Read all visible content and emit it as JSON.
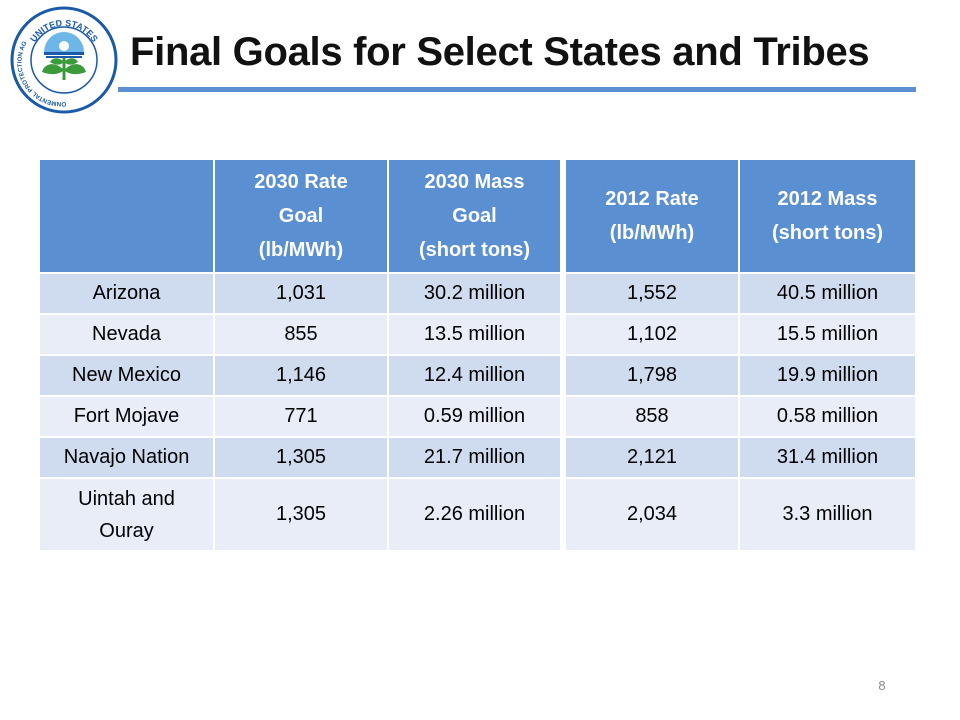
{
  "header": {
    "title": "Final Goals for Select States and Tribes",
    "logo_text_top": "UNITED STATES",
    "logo_text_left": "ENVIRONMENTAL PROTECTION AGENCY"
  },
  "colors": {
    "header_fill": "#5a8fd2",
    "row_band_dark": "#cfdbef",
    "row_band_light": "#e8edf7",
    "title_rule": "#5b8fd2"
  },
  "table_left": {
    "headers": [
      [
        ""
      ],
      [
        "2030 Rate",
        "Goal",
        "(lb/MWh)"
      ],
      [
        "2030 Mass",
        "Goal",
        "(short tons)"
      ]
    ],
    "rows": [
      {
        "name": [
          "Arizona"
        ],
        "rate": "1,031",
        "mass": "30.2 million"
      },
      {
        "name": [
          "Nevada"
        ],
        "rate": "855",
        "mass": "13.5 million"
      },
      {
        "name": [
          "New Mexico"
        ],
        "rate": "1,146",
        "mass": "12.4 million"
      },
      {
        "name": [
          "Fort Mojave"
        ],
        "rate": "771",
        "mass": "0.59 million"
      },
      {
        "name": [
          "Navajo Nation"
        ],
        "rate": "1,305",
        "mass": "21.7 million"
      },
      {
        "name": [
          "Uintah and",
          "Ouray"
        ],
        "rate": "1,305",
        "mass": "2.26 million"
      }
    ]
  },
  "table_right": {
    "headers": [
      [
        "2012 Rate",
        "(lb/MWh)"
      ],
      [
        "2012 Mass",
        "(short tons)"
      ]
    ],
    "rows": [
      {
        "rate": "1,552",
        "mass": "40.5 million"
      },
      {
        "rate": "1,102",
        "mass": "15.5 million"
      },
      {
        "rate": "1,798",
        "mass": "19.9 million"
      },
      {
        "rate": "858",
        "mass": "0.58 million"
      },
      {
        "rate": "2,121",
        "mass": "31.4 million"
      },
      {
        "rate": "2,034",
        "mass": "3.3 million"
      }
    ]
  },
  "footer": {
    "page_number": "8"
  }
}
